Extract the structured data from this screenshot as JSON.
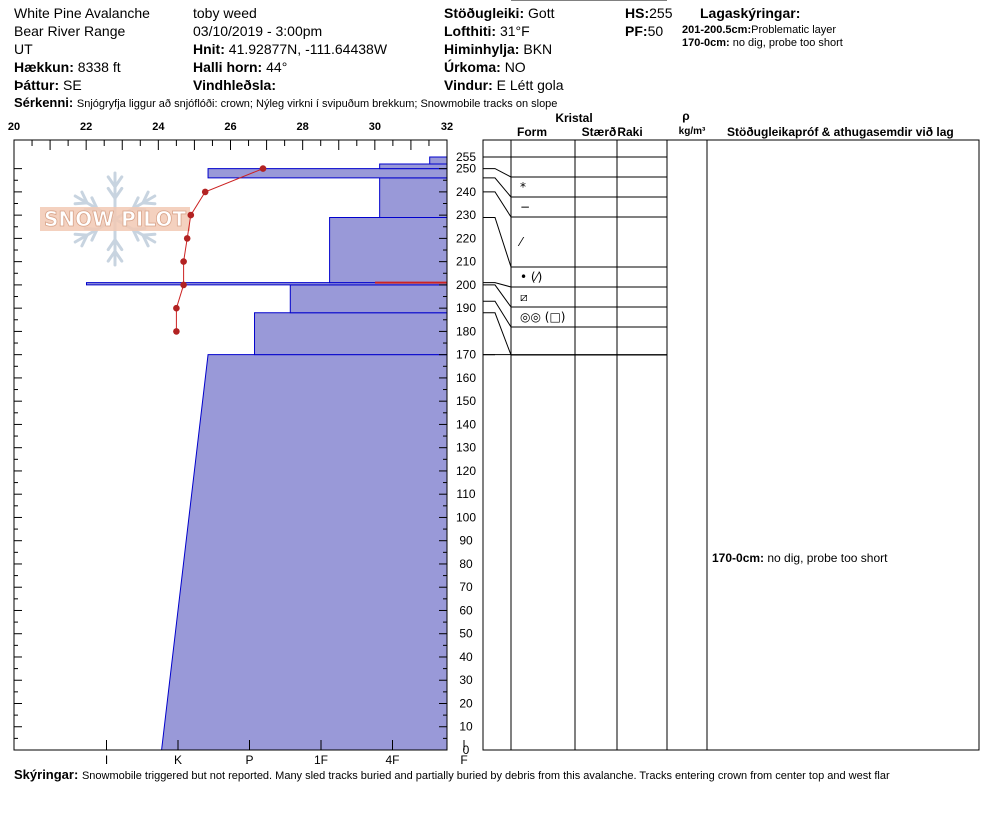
{
  "header": {
    "location": "White Pine Avalanche",
    "range": "Bear River Range",
    "state": "UT",
    "elevation_label": "Hækkun:",
    "elevation_value": "8338 ft",
    "aspect_label": "Þáttur:",
    "aspect_value": "SE",
    "observer": "toby weed",
    "datetime": "03/10/2019 - 3:00pm",
    "coords_label": "Hnit:",
    "coords_value": "41.92877N, -111.64438W",
    "slope_label": "Halli horn:",
    "slope_value": "44°",
    "wind_loading_label": "Vindhleðsla:",
    "wind_loading_value": "",
    "stability_label": "Stöðugleiki:",
    "stability_value": "Gott",
    "air_temp_label": "Lofthiti:",
    "air_temp_value": "31°F",
    "sky_label": "Himinhylja:",
    "sky_value": "BKN",
    "precip_label": "Úrkoma:",
    "precip_value": "NO",
    "wind_label": "Vindur:",
    "wind_value": "E Létt gola",
    "hs_label": "HS:",
    "hs_value": "255",
    "pf_label": "PF:",
    "pf_value": "50",
    "layer_notes_label": "Lagaskýringar:",
    "layer_notes": [
      {
        "range": "201-200.5cm:",
        "text": "Problematic layer"
      },
      {
        "range": "170-0cm:",
        "text": "no dig, probe too short"
      }
    ],
    "features_label": "Sérkenni:",
    "features_value": "Snjógryfja liggur að snjóflóði: crown; Nýleg virkni í svipuðum brekkum; Snowmobile tracks on slope"
  },
  "footer": {
    "notes_label": "Skýringar:",
    "notes_value": "Snowmobile triggered but not reported.  Many sled tracks buried and partially buried by debris from this avalanche.  Tracks entering crown from center top and west flar"
  },
  "watermark": "SNOW PILOT",
  "table_headers": {
    "crystal": "Kristal",
    "form": "Form",
    "size": "Stærð",
    "moisture": "Raki",
    "density_symbol": "ρ",
    "density_unit": "kg/m³",
    "stability_comments": "Stöðugleikapróf & athugasemdir við lag"
  },
  "comment_row": {
    "range": "170-0cm:",
    "text": "no dig, probe too short"
  },
  "colors": {
    "hardness_fill": "#9999d8",
    "hardness_edge": "#0000cc",
    "temp_line": "#cc2222",
    "temp_dot": "#b22222",
    "problem_line": "#cc2222"
  },
  "chart_data": {
    "type": "snow-profile",
    "temp_axis": {
      "ticks": [
        20,
        22,
        24,
        26,
        28,
        30,
        32
      ],
      "range": [
        20,
        32
      ],
      "position": "top"
    },
    "hardness_axis": {
      "ticks": [
        "I",
        "K",
        "P",
        "1F",
        "4F",
        "F"
      ],
      "position": "bottom"
    },
    "height_axis": {
      "ticks": [
        0,
        10,
        20,
        30,
        40,
        50,
        60,
        70,
        80,
        90,
        100,
        110,
        120,
        130,
        140,
        150,
        160,
        170,
        180,
        190,
        200,
        210,
        220,
        230,
        240,
        250,
        255
      ],
      "range": [
        0,
        255
      ]
    },
    "hardness_layers": [
      {
        "bottom": 0,
        "top": 170,
        "hardness_bottom": 2.05,
        "hardness_top": 2.7
      },
      {
        "bottom": 170,
        "top": 188,
        "hardness": 3.35
      },
      {
        "bottom": 188,
        "top": 200,
        "hardness": 3.85
      },
      {
        "bottom": 200,
        "top": 201,
        "hardness": 1.0
      },
      {
        "bottom": 201,
        "top": 229,
        "hardness": 4.4
      },
      {
        "bottom": 229,
        "top": 246,
        "hardness": 5.1
      },
      {
        "bottom": 246,
        "top": 250,
        "hardness": 2.7
      },
      {
        "bottom": 250,
        "top": 252,
        "hardness": 5.1
      },
      {
        "bottom": 252,
        "top": 255,
        "hardness": 5.8
      }
    ],
    "temperature_profile": [
      {
        "height": 250,
        "temp": 26.9
      },
      {
        "height": 240,
        "temp": 25.3
      },
      {
        "height": 230,
        "temp": 24.9
      },
      {
        "height": 220,
        "temp": 24.8
      },
      {
        "height": 210,
        "temp": 24.7
      },
      {
        "height": 200,
        "temp": 24.7
      },
      {
        "height": 190,
        "temp": 24.5
      },
      {
        "height": 180,
        "temp": 24.5
      }
    ],
    "problem_layer_height": 201,
    "layer_boundaries": [
      255,
      250,
      246,
      240,
      229,
      201,
      200,
      193,
      188,
      170,
      0
    ],
    "crystal_rows": [
      {
        "symbol": "*",
        "from": 246,
        "to": 250
      },
      {
        "symbol": "−",
        "from": 240,
        "to": 246
      },
      {
        "symbol": "⁄",
        "from": 229,
        "to": 240
      },
      {
        "symbol": "• (⁄)",
        "from": 201,
        "to": 229
      },
      {
        "symbol": "⧄",
        "from": 193,
        "to": 201
      },
      {
        "symbol": "◎◎ (□)",
        "from": 188,
        "to": 193
      }
    ]
  }
}
